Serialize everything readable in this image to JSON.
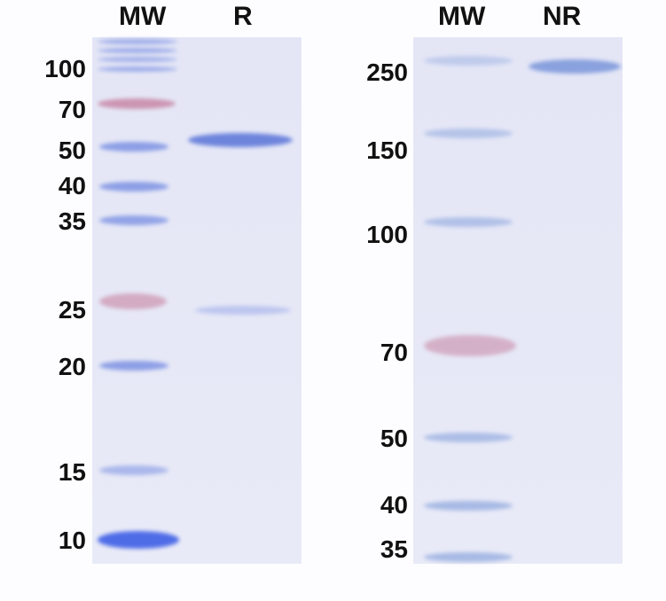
{
  "left_gel": {
    "lanes": [
      "MW",
      "R"
    ],
    "markers": [
      "100",
      "70",
      "50",
      "40",
      "35",
      "25",
      "20",
      "15",
      "10"
    ]
  },
  "right_gel": {
    "lanes": [
      "MW",
      "NR"
    ],
    "markers": [
      "250",
      "150",
      "100",
      "70",
      "50",
      "40",
      "35"
    ]
  },
  "colors": {
    "blue_band": "#6f86e0",
    "pink_band": "#c47a9a",
    "gel": "#e6e8f6"
  }
}
